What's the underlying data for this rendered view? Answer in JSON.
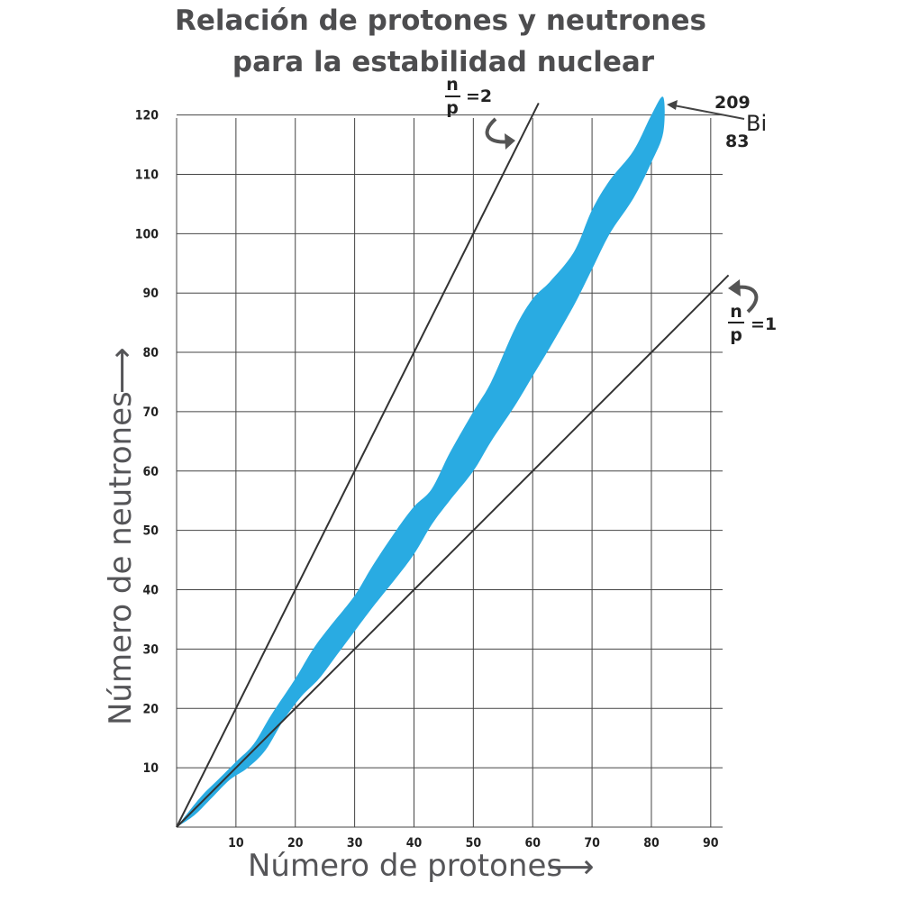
{
  "chart_data": {
    "type": "area",
    "title_lines": [
      "Relación de protones y neutrones",
      "para la estabilidad nuclear"
    ],
    "xlabel": "Número de protones",
    "ylabel": "Número de neutrones",
    "x_arrow": "⟶",
    "y_arrow": "⟶",
    "xlim": [
      0,
      92
    ],
    "ylim": [
      0,
      121
    ],
    "x_ticks": [
      10,
      20,
      30,
      40,
      50,
      60,
      70,
      80,
      90
    ],
    "y_ticks": [
      10,
      20,
      30,
      40,
      50,
      60,
      70,
      80,
      90,
      100,
      110,
      120
    ],
    "grid": true,
    "band_color": "#29abe2",
    "stability_band": {
      "upper": [
        [
          0,
          0
        ],
        [
          4,
          5
        ],
        [
          7,
          8
        ],
        [
          10,
          11
        ],
        [
          13,
          14
        ],
        [
          16,
          19
        ],
        [
          20,
          25
        ],
        [
          23,
          30
        ],
        [
          26,
          34
        ],
        [
          30,
          39
        ],
        [
          33,
          44
        ],
        [
          37,
          50
        ],
        [
          40,
          54
        ],
        [
          43,
          57
        ],
        [
          46,
          63
        ],
        [
          50,
          70
        ],
        [
          53,
          75
        ],
        [
          57,
          84
        ],
        [
          60,
          89
        ],
        [
          63,
          92
        ],
        [
          67,
          97
        ],
        [
          70,
          104
        ],
        [
          73,
          109
        ],
        [
          77,
          114
        ],
        [
          80,
          120
        ],
        [
          82,
          123
        ]
      ],
      "lower": [
        [
          82,
          123
        ],
        [
          82,
          117
        ],
        [
          80,
          112
        ],
        [
          77,
          106
        ],
        [
          73,
          100
        ],
        [
          70,
          94
        ],
        [
          67,
          88
        ],
        [
          63,
          81
        ],
        [
          60,
          76
        ],
        [
          57,
          71
        ],
        [
          53,
          65
        ],
        [
          50,
          60
        ],
        [
          46,
          55
        ],
        [
          43,
          51
        ],
        [
          40,
          46
        ],
        [
          37,
          42
        ],
        [
          33,
          37
        ],
        [
          30,
          33
        ],
        [
          27,
          29
        ],
        [
          24,
          25
        ],
        [
          21,
          22
        ],
        [
          18,
          18
        ],
        [
          15,
          13
        ],
        [
          12,
          10
        ],
        [
          9,
          8
        ],
        [
          6,
          5
        ],
        [
          3,
          2
        ],
        [
          0,
          0
        ]
      ]
    },
    "ratio_lines": [
      {
        "label_num": "n",
        "label_den": "p",
        "label_value": "=2",
        "ratio": 2,
        "x_end": 61
      },
      {
        "label_num": "n",
        "label_den": "p",
        "label_value": "=1",
        "ratio": 1,
        "x_end": 93
      }
    ],
    "annotation": {
      "mass": "209",
      "atomic": "83",
      "symbol": "Bi",
      "point": [
        82,
        123
      ]
    }
  }
}
